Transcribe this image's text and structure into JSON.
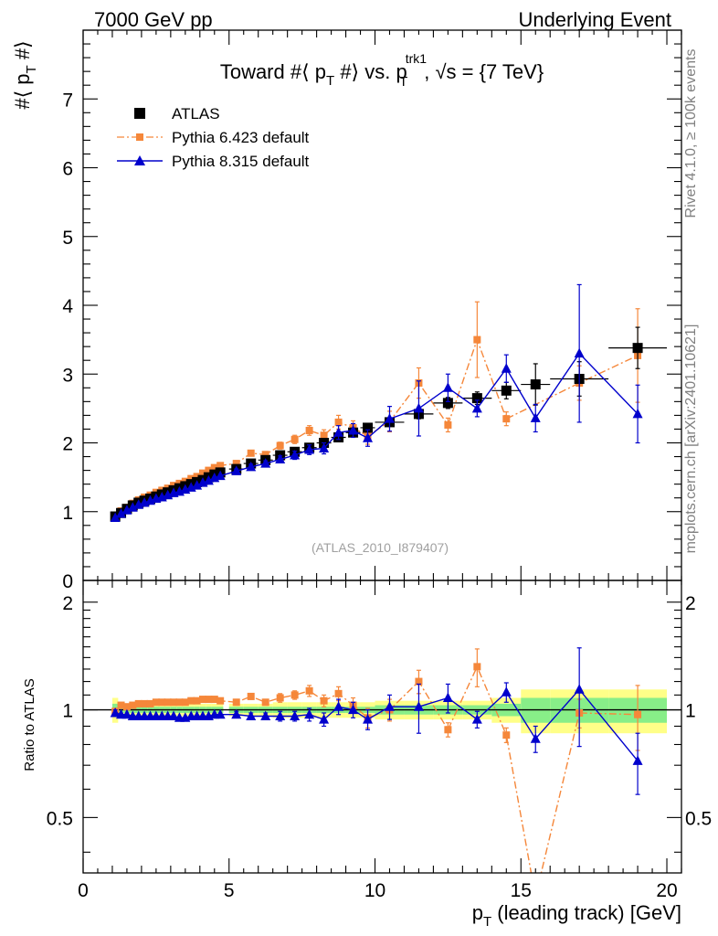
{
  "chart_data": {
    "type": "line",
    "top_left_label": "7000 GeV pp",
    "top_right_label": "Underlying Event",
    "title": {
      "part1": "Toward #⟨ p",
      "sub1": "T",
      "part2": " #⟩ vs. p",
      "sup2": "trk1",
      "sub2": "T",
      "part3": ", √s = {7 TeV}"
    },
    "ylabel": {
      "main": "#⟨ p",
      "sub": "T",
      "end": " #⟩"
    },
    "ratio_ylabel": "Ratio to ATLAS",
    "xlabel": {
      "p": "p",
      "sub": "T",
      "rest": " (leading track) [GeV]"
    },
    "rivet_label": "Rivet 4.1.0, ≥ 100k events",
    "mcplots_label": "mcplots.cern.ch [arXiv:2401.10621]",
    "analysis_label": "(ATLAS_2010_I879407)",
    "xlim": [
      0,
      20.5
    ],
    "ylim": [
      0,
      8
    ],
    "ratio_ylim": [
      0.35,
      2.3
    ],
    "x_ticks": [
      "0",
      "5",
      "10",
      "15",
      "20"
    ],
    "y_ticks": [
      "0",
      "1",
      "2",
      "3",
      "4",
      "5",
      "6",
      "7"
    ],
    "ratio_ticks": [
      "0.5",
      "1",
      "2"
    ],
    "legend": [
      "ATLAS",
      "Pythia 6.423 default",
      "Pythia 8.315 default"
    ],
    "colors": {
      "atlas": "#000000",
      "py6": "#f5873a",
      "py8": "#0000cc",
      "band_inner": "#88ee88",
      "band_outer": "#ffff88"
    },
    "x": [
      1.1,
      1.3,
      1.5,
      1.7,
      1.9,
      2.1,
      2.3,
      2.5,
      2.7,
      2.9,
      3.1,
      3.3,
      3.5,
      3.7,
      3.9,
      4.1,
      4.3,
      4.5,
      4.7,
      5.25,
      5.75,
      6.25,
      6.75,
      7.25,
      7.75,
      8.25,
      8.75,
      9.25,
      9.75,
      10.5,
      11.5,
      12.5,
      13.5,
      14.5,
      15.5,
      17.0,
      19.0
    ],
    "xerr": [
      0.1,
      0.1,
      0.1,
      0.1,
      0.1,
      0.1,
      0.1,
      0.1,
      0.1,
      0.1,
      0.1,
      0.1,
      0.1,
      0.1,
      0.1,
      0.1,
      0.1,
      0.1,
      0.1,
      0.25,
      0.25,
      0.25,
      0.25,
      0.25,
      0.25,
      0.25,
      0.25,
      0.25,
      0.25,
      0.5,
      0.5,
      0.5,
      0.5,
      0.5,
      0.5,
      1.0,
      1.0
    ],
    "series": [
      {
        "name": "ATLAS",
        "values": [
          0.93,
          0.98,
          1.04,
          1.09,
          1.13,
          1.16,
          1.19,
          1.22,
          1.25,
          1.28,
          1.31,
          1.34,
          1.37,
          1.4,
          1.43,
          1.46,
          1.5,
          1.54,
          1.57,
          1.62,
          1.7,
          1.75,
          1.82,
          1.87,
          1.93,
          2.0,
          2.08,
          2.15,
          2.22,
          2.3,
          2.42,
          2.58,
          2.65,
          2.76,
          2.85,
          2.93,
          3.38
        ],
        "errors": [
          0.03,
          0.02,
          0.02,
          0.02,
          0.02,
          0.02,
          0.02,
          0.02,
          0.02,
          0.02,
          0.02,
          0.02,
          0.02,
          0.02,
          0.02,
          0.02,
          0.02,
          0.02,
          0.02,
          0.02,
          0.02,
          0.02,
          0.03,
          0.03,
          0.03,
          0.04,
          0.04,
          0.05,
          0.05,
          0.06,
          0.07,
          0.08,
          0.09,
          0.12,
          0.3,
          0.25,
          0.3
        ]
      },
      {
        "name": "Pythia 6.423 default",
        "values": [
          0.92,
          1.01,
          1.06,
          1.12,
          1.17,
          1.21,
          1.24,
          1.28,
          1.31,
          1.34,
          1.38,
          1.41,
          1.44,
          1.48,
          1.51,
          1.56,
          1.6,
          1.64,
          1.67,
          1.7,
          1.85,
          1.83,
          1.96,
          2.05,
          2.18,
          2.11,
          2.3,
          2.22,
          2.1,
          2.31,
          2.87,
          2.26,
          3.5,
          2.35,
          null,
          2.87,
          3.27
        ],
        "errors": [
          0.02,
          0.01,
          0.01,
          0.01,
          0.01,
          0.01,
          0.01,
          0.01,
          0.01,
          0.01,
          0.01,
          0.01,
          0.01,
          0.01,
          0.01,
          0.02,
          0.02,
          0.02,
          0.02,
          0.03,
          0.04,
          0.04,
          0.05,
          0.06,
          0.07,
          0.08,
          0.1,
          0.1,
          0.12,
          0.15,
          0.22,
          0.1,
          0.55,
          0.1,
          null,
          0.25,
          0.68
        ]
      },
      {
        "name": "Pythia 8.315 default",
        "values": [
          0.91,
          0.97,
          1.02,
          1.06,
          1.1,
          1.13,
          1.16,
          1.19,
          1.21,
          1.24,
          1.27,
          1.29,
          1.32,
          1.35,
          1.38,
          1.42,
          1.45,
          1.49,
          1.52,
          1.59,
          1.65,
          1.7,
          1.76,
          1.82,
          1.9,
          1.92,
          2.15,
          2.18,
          2.07,
          2.35,
          2.5,
          2.8,
          2.5,
          3.08,
          2.36,
          3.3,
          2.42
        ],
        "errors": [
          0.02,
          0.01,
          0.01,
          0.01,
          0.01,
          0.01,
          0.01,
          0.01,
          0.01,
          0.01,
          0.01,
          0.01,
          0.01,
          0.01,
          0.01,
          0.02,
          0.02,
          0.02,
          0.02,
          0.03,
          0.04,
          0.04,
          0.05,
          0.06,
          0.07,
          0.08,
          0.1,
          0.1,
          0.12,
          0.18,
          0.4,
          0.2,
          0.12,
          0.2,
          0.2,
          1.0,
          0.42
        ]
      }
    ],
    "ratio": {
      "py6": [
        0.99,
        1.03,
        1.02,
        1.03,
        1.04,
        1.04,
        1.04,
        1.05,
        1.05,
        1.05,
        1.05,
        1.05,
        1.05,
        1.06,
        1.06,
        1.07,
        1.07,
        1.07,
        1.06,
        1.05,
        1.09,
        1.05,
        1.08,
        1.1,
        1.13,
        1.06,
        1.11,
        1.03,
        0.95,
        1.0,
        1.2,
        0.88,
        1.32,
        0.85,
        0.3,
        0.98,
        0.97
      ],
      "py6_err": [
        0.02,
        0.01,
        0.01,
        0.01,
        0.01,
        0.01,
        0.01,
        0.01,
        0.01,
        0.01,
        0.01,
        0.01,
        0.01,
        0.01,
        0.01,
        0.01,
        0.01,
        0.01,
        0.01,
        0.02,
        0.02,
        0.02,
        0.03,
        0.03,
        0.04,
        0.04,
        0.05,
        0.05,
        0.06,
        0.07,
        0.09,
        0.04,
        0.16,
        0.04,
        null,
        0.09,
        0.2
      ],
      "py8": [
        0.98,
        0.97,
        0.97,
        0.96,
        0.96,
        0.96,
        0.96,
        0.96,
        0.96,
        0.96,
        0.96,
        0.95,
        0.95,
        0.96,
        0.96,
        0.96,
        0.96,
        0.97,
        0.97,
        0.97,
        0.96,
        0.96,
        0.96,
        0.96,
        0.97,
        0.94,
        1.02,
        1.0,
        0.94,
        1.02,
        1.02,
        1.08,
        0.94,
        1.12,
        0.83,
        1.14,
        0.72
      ],
      "py8_err": [
        0.02,
        0.01,
        0.01,
        0.01,
        0.01,
        0.01,
        0.01,
        0.01,
        0.01,
        0.01,
        0.01,
        0.01,
        0.01,
        0.01,
        0.01,
        0.01,
        0.01,
        0.01,
        0.01,
        0.02,
        0.02,
        0.02,
        0.03,
        0.03,
        0.04,
        0.04,
        0.05,
        0.05,
        0.06,
        0.08,
        0.16,
        0.1,
        0.05,
        0.07,
        0.07,
        0.35,
        0.14
      ],
      "band_inner": [
        0.04,
        0.02,
        0.02,
        0.02,
        0.02,
        0.02,
        0.02,
        0.02,
        0.02,
        0.02,
        0.02,
        0.02,
        0.02,
        0.02,
        0.02,
        0.02,
        0.02,
        0.02,
        0.02,
        0.02,
        0.02,
        0.02,
        0.02,
        0.02,
        0.02,
        0.02,
        0.02,
        0.02,
        0.02,
        0.03,
        0.03,
        0.03,
        0.03,
        0.04,
        0.08,
        0.08,
        0.08
      ],
      "band_outer": [
        0.08,
        0.04,
        0.04,
        0.04,
        0.04,
        0.04,
        0.04,
        0.04,
        0.04,
        0.04,
        0.04,
        0.04,
        0.04,
        0.04,
        0.04,
        0.04,
        0.04,
        0.04,
        0.04,
        0.04,
        0.04,
        0.04,
        0.05,
        0.05,
        0.05,
        0.05,
        0.05,
        0.05,
        0.05,
        0.06,
        0.06,
        0.06,
        0.06,
        0.08,
        0.14,
        0.14,
        0.14
      ]
    }
  }
}
